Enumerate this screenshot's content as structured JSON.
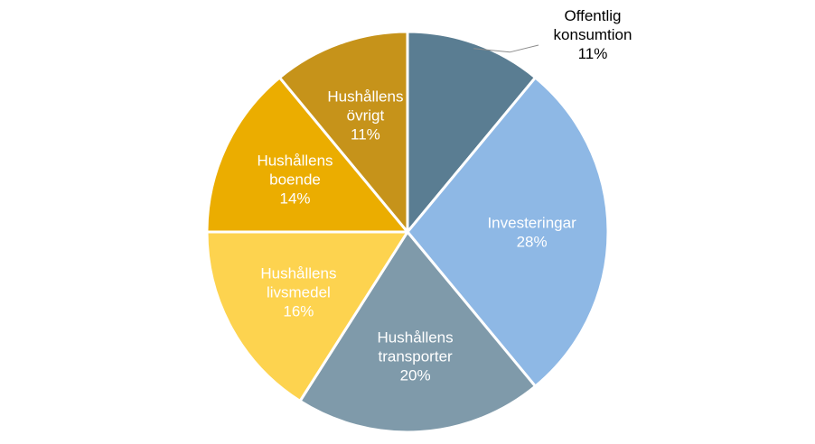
{
  "chart_data": {
    "type": "pie",
    "slices": [
      {
        "label": [
          "Offentlig",
          "konsumtion"
        ],
        "percent_label": "11%",
        "value": 11,
        "color": "#5a7d92",
        "label_position": "outside"
      },
      {
        "label": [
          "Investeringar"
        ],
        "percent_label": "28%",
        "value": 28,
        "color": "#8eb8e5",
        "label_position": "inside"
      },
      {
        "label": [
          "Hushållens",
          "transporter"
        ],
        "percent_label": "20%",
        "value": 20,
        "color": "#7f9aaa",
        "label_position": "inside"
      },
      {
        "label": [
          "Hushållens",
          "livsmedel"
        ],
        "percent_label": "16%",
        "value": 16,
        "color": "#fdd34f",
        "label_position": "inside"
      },
      {
        "label": [
          "Hushållens",
          "boende"
        ],
        "percent_label": "14%",
        "value": 14,
        "color": "#ebad00",
        "label_position": "inside"
      },
      {
        "label": [
          "Hushållens",
          "övrigt"
        ],
        "percent_label": "11%",
        "value": 11,
        "color": "#c6931a",
        "label_position": "inside"
      }
    ],
    "start": "12 o'clock",
    "direction": "clockwise"
  }
}
